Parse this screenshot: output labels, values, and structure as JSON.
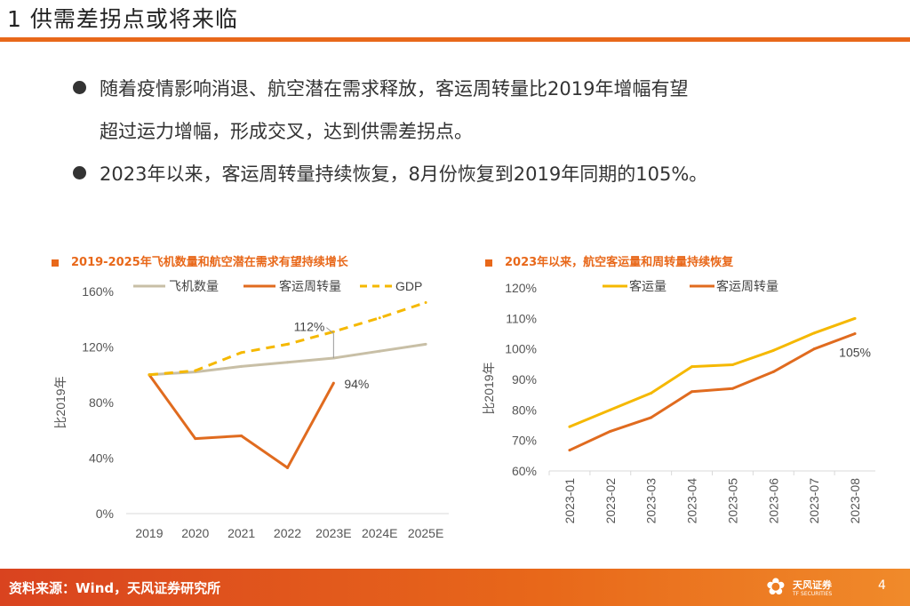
{
  "page": {
    "title": "1 供需差拐点或将来临",
    "bullets": [
      "随着疫情影响消退、航空潜在需求释放，客运周转量比2019年增幅有望",
      "超过运力增幅，形成交叉，达到供需差拐点。",
      "2023年以来，客运周转量持续恢复，8月份恢复到2019年同期的105%。"
    ],
    "footer": {
      "source": "资料来源：Wind，天风证券研究所",
      "logo_name": "天风证券",
      "logo_en": "TF SECURITIES",
      "page_number": "4"
    }
  },
  "colors": {
    "accent": "#e8681a",
    "gray_series": "#c8bfa6",
    "orange_series": "#e06b1f",
    "yellow_series": "#f5b800"
  },
  "chart_data": [
    {
      "type": "line",
      "title": "2019-2025年飞机数量和航空潜在需求有望持续增长",
      "categories": [
        "2019",
        "2020",
        "2021",
        "2022",
        "2023E",
        "2024E",
        "2025E"
      ],
      "ylabel": "比2019年",
      "ylim": [
        0,
        160
      ],
      "yticks": [
        "0%",
        "40%",
        "80%",
        "120%",
        "160%"
      ],
      "series": [
        {
          "name": "飞机数量",
          "values": [
            100,
            102,
            106,
            109,
            112,
            117,
            122
          ]
        },
        {
          "name": "客运周转量",
          "values": [
            100,
            54,
            56,
            33,
            94,
            null,
            null
          ]
        },
        {
          "name": "GDP",
          "values": [
            100,
            103,
            116,
            122,
            131,
            141,
            152
          ]
        }
      ],
      "annotations": [
        "112%",
        "94%"
      ]
    },
    {
      "type": "line",
      "title": "2023年以来，航空客运量和周转量持续恢复",
      "categories": [
        "2023-01",
        "2023-02",
        "2023-03",
        "2023-04",
        "2023-05",
        "2023-06",
        "2023-07",
        "2023-08"
      ],
      "ylabel": "比2019年",
      "ylim": [
        60,
        120
      ],
      "yticks": [
        "60%",
        "70%",
        "80%",
        "90%",
        "100%",
        "110%",
        "120%"
      ],
      "series": [
        {
          "name": "客运量",
          "values": [
            74.5,
            80,
            85.5,
            94.2,
            94.8,
            99.5,
            105.2,
            110
          ]
        },
        {
          "name": "客运周转量",
          "values": [
            66.8,
            73,
            77.5,
            86,
            87,
            92.5,
            100,
            105
          ]
        }
      ],
      "annotations": [
        "105%"
      ]
    }
  ]
}
